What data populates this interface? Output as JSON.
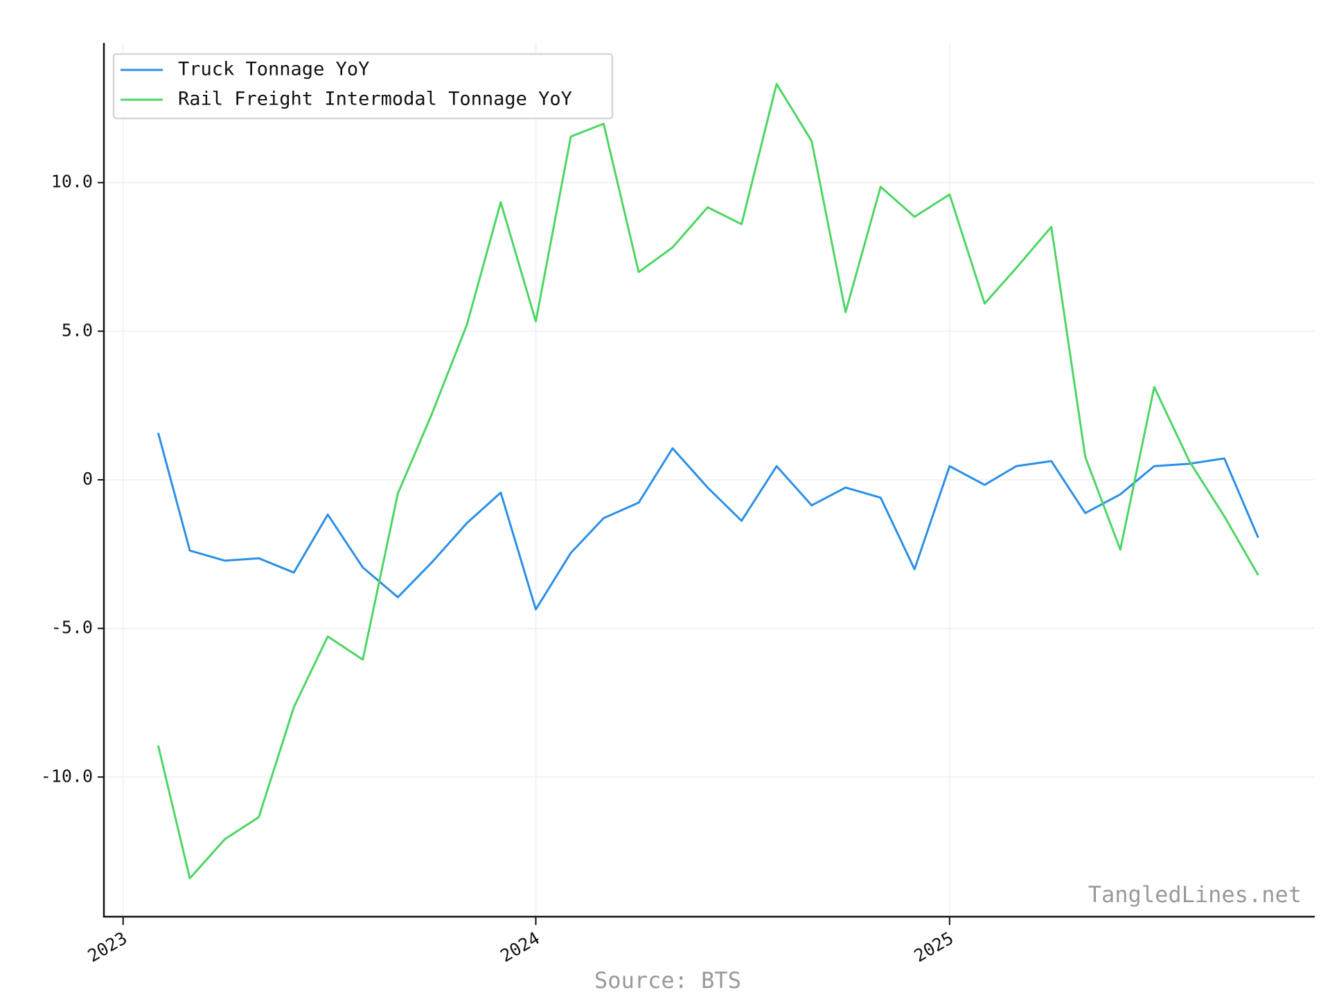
{
  "chart_data": {
    "type": "line",
    "annotations": {
      "watermark": "TangledLines.net",
      "source": "Source: BTS"
    },
    "x": [
      "2023-02",
      "2023-03",
      "2023-04",
      "2023-05",
      "2023-06",
      "2023-07",
      "2023-08",
      "2023-09",
      "2023-10",
      "2023-11",
      "2023-12",
      "2024-01",
      "2024-02",
      "2024-03",
      "2024-04",
      "2024-05",
      "2024-06",
      "2024-07",
      "2024-08",
      "2024-09",
      "2024-10",
      "2024-11",
      "2024-12",
      "2025-01",
      "2025-02",
      "2025-03",
      "2025-04",
      "2025-05",
      "2025-06",
      "2025-07",
      "2025-08",
      "2025-09",
      "2025-10"
    ],
    "series": [
      {
        "name": "Truck Tonnage YoY",
        "color": "#2b8fe6",
        "values": [
          1.58,
          -2.38,
          -2.72,
          -2.64,
          -3.12,
          -1.17,
          -2.95,
          -3.95,
          -2.78,
          -1.46,
          -0.43,
          -4.36,
          -2.46,
          -1.29,
          -0.77,
          1.06,
          -0.26,
          -1.38,
          0.46,
          -0.86,
          -0.26,
          -0.6,
          -3.01,
          0.46,
          -0.17,
          0.46,
          0.63,
          -1.12,
          -0.49,
          0.46,
          0.54,
          0.72,
          -1.95
        ]
      },
      {
        "name": "Rail Freight Intermodal Tonnage YoY",
        "color": "#4cd663",
        "values": [
          -8.94,
          -13.41,
          -12.09,
          -11.35,
          -7.65,
          -5.27,
          -6.05,
          -0.46,
          2.21,
          5.21,
          9.34,
          5.33,
          11.55,
          11.98,
          6.99,
          7.82,
          9.17,
          8.6,
          13.32,
          11.4,
          5.64,
          9.86,
          8.85,
          9.6,
          5.93,
          7.13,
          8.51,
          0.77,
          -2.35,
          3.12,
          0.63,
          -1.23,
          -3.21
        ]
      }
    ],
    "xlim": [
      "2022-12-15",
      "2025-11-20"
    ],
    "xticks": [
      {
        "value": "2023-01",
        "label": "2023"
      },
      {
        "value": "2024-01",
        "label": "2024"
      },
      {
        "value": "2025-01",
        "label": "2025"
      }
    ],
    "ylim": [
      -14.7,
      14.7
    ],
    "yticks": [
      {
        "value": -10,
        "label": "-10.0"
      },
      {
        "value": -5,
        "label": "-5.0"
      },
      0,
      {
        "value": 5,
        "label": "5.0"
      },
      {
        "value": 10,
        "label": "10.0"
      }
    ],
    "grid": true,
    "legend": "upper left"
  }
}
